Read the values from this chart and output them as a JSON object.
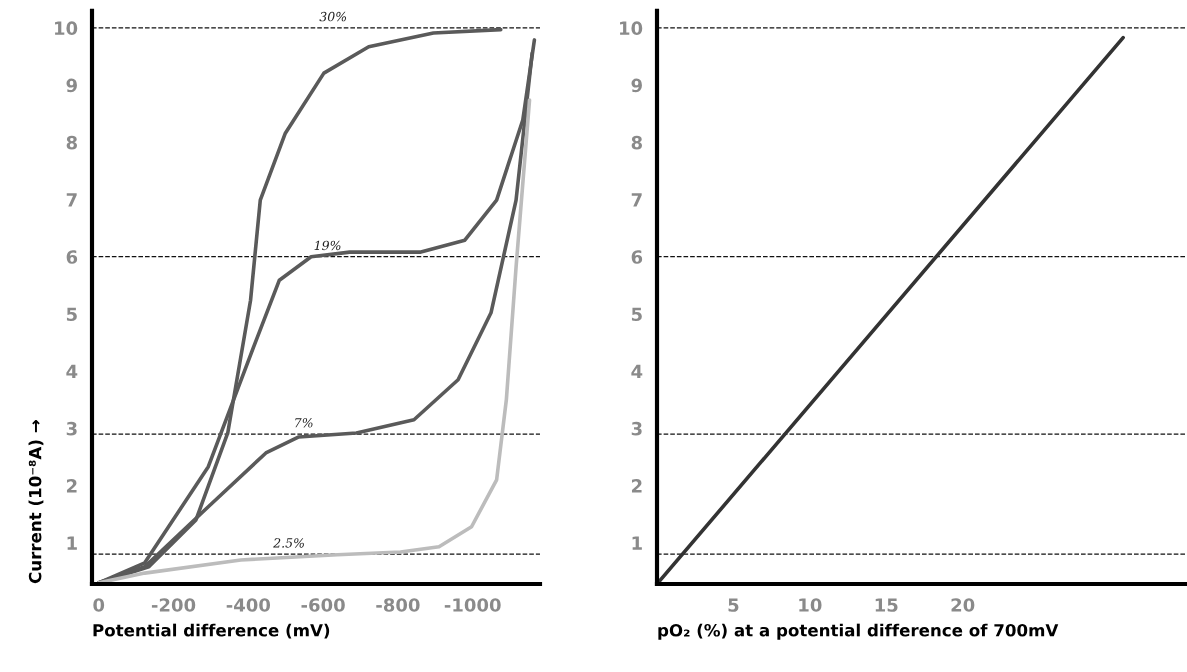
{
  "chart_data": [
    {
      "type": "line",
      "xlabel": "Potential difference (mV)",
      "ylabel": "Current (10⁻⁸A) →",
      "xlim": [
        18,
        -1180
      ],
      "xticks": [
        0,
        -200,
        -400,
        -600,
        -800,
        -1000
      ],
      "ylim": [
        0.28,
        10.3
      ],
      "yticks": [
        1,
        2,
        3,
        4,
        5,
        6,
        7,
        8,
        9,
        10
      ],
      "series": [
        {
          "color": "#5a5a5a",
          "x": [
            0,
            -134,
            -260,
            -345,
            -406,
            -432,
            -499,
            -602,
            -722,
            -895,
            -1075
          ],
          "values": [
            0.3,
            0.58,
            1.4,
            2.92,
            5.24,
            6.99,
            8.16,
            9.21,
            9.67,
            9.91,
            9.97
          ]
        },
        {
          "color": "#5a5a5a",
          "x": [
            0,
            -123,
            -293,
            -414,
            -483,
            -568,
            -671,
            -859,
            -979,
            -1064,
            -1134,
            -1165
          ],
          "values": [
            0.3,
            0.65,
            2.33,
            4.42,
            5.59,
            6.0,
            6.08,
            6.08,
            6.29,
            6.99,
            8.39,
            9.79
          ]
        },
        {
          "color": "#5a5a5a",
          "x": [
            0,
            -123,
            -293,
            -447,
            -535,
            -689,
            -843,
            -961,
            -1049,
            -1116,
            -1159
          ],
          "values": [
            0.3,
            0.58,
            1.63,
            2.57,
            2.85,
            2.92,
            3.15,
            3.85,
            5.02,
            6.99,
            9.56
          ]
        },
        {
          "color": "#bcbcbc",
          "x": [
            0,
            -123,
            -380,
            -638,
            -807,
            -910,
            -997,
            -1064,
            -1090,
            -1116,
            -1152
          ],
          "values": [
            0.3,
            0.47,
            0.7,
            0.79,
            0.84,
            0.93,
            1.28,
            2.1,
            3.5,
            5.82,
            8.74
          ]
        }
      ],
      "annotations": [
        {
          "text": "30%",
          "x": -627,
          "y": 10
        },
        {
          "text": "19%",
          "x": -612,
          "y": 6
        },
        {
          "text": "7%",
          "x": -548,
          "y": 2.9
        },
        {
          "text": "2.5%",
          "x": -509,
          "y": 0.8
        }
      ],
      "ref_lines": [
        {
          "axis": "y",
          "value": 0.8,
          "line_style": "dashed"
        },
        {
          "axis": "y",
          "value": 2.9,
          "line_style": "dashed"
        },
        {
          "axis": "y",
          "value": 6,
          "line_style": "dashed"
        },
        {
          "axis": "y",
          "value": 10,
          "line_style": "dashed"
        }
      ],
      "grid": false,
      "legend": false,
      "line_style": "solid",
      "marker": "none"
    },
    {
      "type": "line",
      "xlabel": "pO₂ (%) at a potential difference of 700mV",
      "xlim": [
        0,
        34.6
      ],
      "xticks": [
        5,
        10,
        15,
        20
      ],
      "ylim": [
        0.28,
        10.3
      ],
      "yticks": [
        1,
        2,
        3,
        4,
        5,
        6,
        7,
        8,
        9,
        10
      ],
      "series": [
        {
          "color": "#333333",
          "x": [
            0,
            30.5
          ],
          "values": [
            0.28,
            9.83
          ]
        }
      ],
      "ref_lines": [
        {
          "axis": "y",
          "value": 0.8,
          "line_style": "dashed"
        },
        {
          "axis": "y",
          "value": 2.9,
          "line_style": "dashed"
        },
        {
          "axis": "y",
          "value": 6,
          "line_style": "dashed"
        },
        {
          "axis": "y",
          "value": 10,
          "line_style": "dashed"
        }
      ],
      "grid": false,
      "legend": false,
      "line_style": "solid",
      "marker": "none"
    }
  ]
}
